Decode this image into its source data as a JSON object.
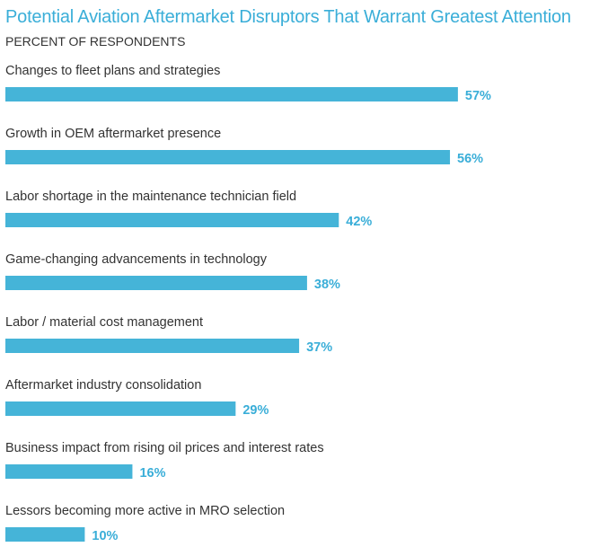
{
  "title": "Potential Aviation Aftermarket Disruptors That Warrant Greatest Attention",
  "subtitle": "PERCENT OF RESPONDENTS",
  "colors": {
    "accent": "#3aaed8",
    "bar": "#45b4d8",
    "text": "#333333"
  },
  "chart_data": {
    "type": "bar",
    "orientation": "horizontal",
    "title": "Potential Aviation Aftermarket Disruptors That Warrant Greatest Attention",
    "subtitle": "PERCENT OF RESPONDENTS",
    "categories": [
      "Changes to fleet plans and strategies",
      "Growth in OEM aftermarket presence",
      "Labor shortage in the maintenance technician field",
      "Game-changing advancements in technology",
      "Labor / material cost management",
      "Aftermarket industry consolidation",
      "Business impact from rising oil prices and interest rates",
      "Lessors becoming more active in MRO selection"
    ],
    "values": [
      57,
      56,
      42,
      38,
      37,
      29,
      16,
      10
    ],
    "value_labels": [
      "57%",
      "56%",
      "42%",
      "38%",
      "37%",
      "29%",
      "16%",
      "10%"
    ],
    "unit": "%",
    "grid": false,
    "legend": "none"
  }
}
